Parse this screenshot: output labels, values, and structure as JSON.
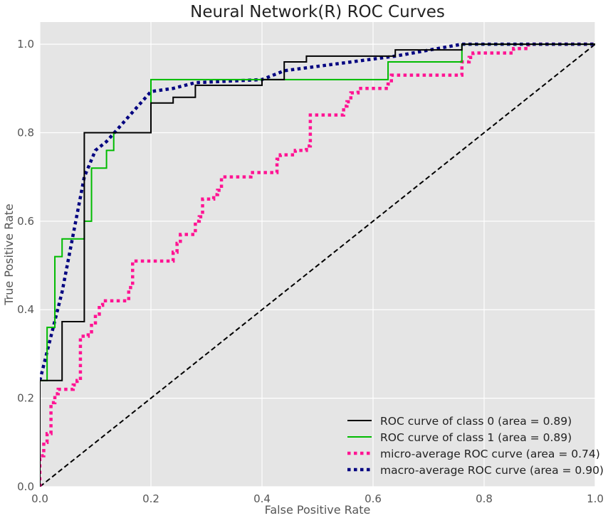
{
  "chart_data": {
    "type": "line",
    "title": "Neural Network(R) ROC Curves",
    "xlabel": "False Positive Rate",
    "ylabel": "True Positive Rate",
    "xlim": [
      0.0,
      1.0
    ],
    "ylim": [
      0.0,
      1.05
    ],
    "xticks": [
      "0.0",
      "0.2",
      "0.4",
      "0.6",
      "0.8",
      "1.0"
    ],
    "yticks": [
      "0.0",
      "0.2",
      "0.4",
      "0.6",
      "0.8",
      "1.0"
    ],
    "grid": true,
    "background": "#e5e5e5",
    "legend_position": "lower right",
    "series": [
      {
        "name": "ROC curve of class 0 (area = 0.89)",
        "color": "#000000",
        "style": "solid",
        "points": [
          [
            0,
            0
          ],
          [
            0,
            0.24
          ],
          [
            0.04,
            0.24
          ],
          [
            0.04,
            0.373
          ],
          [
            0.08,
            0.373
          ],
          [
            0.08,
            0.8
          ],
          [
            0.2,
            0.8
          ],
          [
            0.2,
            0.867
          ],
          [
            0.24,
            0.867
          ],
          [
            0.24,
            0.88
          ],
          [
            0.28,
            0.88
          ],
          [
            0.28,
            0.907
          ],
          [
            0.4,
            0.907
          ],
          [
            0.4,
            0.92
          ],
          [
            0.44,
            0.92
          ],
          [
            0.44,
            0.96
          ],
          [
            0.48,
            0.96
          ],
          [
            0.48,
            0.973
          ],
          [
            0.64,
            0.973
          ],
          [
            0.64,
            0.987
          ],
          [
            0.76,
            0.987
          ],
          [
            0.76,
            1.0
          ],
          [
            1.0,
            1.0
          ]
        ]
      },
      {
        "name": "ROC curve of class 1 (area = 0.89)",
        "color": "#00bb00",
        "style": "solid",
        "points": [
          [
            0,
            0
          ],
          [
            0,
            0.24
          ],
          [
            0.013,
            0.24
          ],
          [
            0.013,
            0.36
          ],
          [
            0.027,
            0.36
          ],
          [
            0.027,
            0.52
          ],
          [
            0.04,
            0.52
          ],
          [
            0.04,
            0.56
          ],
          [
            0.08,
            0.56
          ],
          [
            0.08,
            0.6
          ],
          [
            0.093,
            0.6
          ],
          [
            0.093,
            0.72
          ],
          [
            0.12,
            0.72
          ],
          [
            0.12,
            0.76
          ],
          [
            0.133,
            0.76
          ],
          [
            0.133,
            0.8
          ],
          [
            0.2,
            0.8
          ],
          [
            0.2,
            0.92
          ],
          [
            0.627,
            0.92
          ],
          [
            0.627,
            0.96
          ],
          [
            0.76,
            0.96
          ],
          [
            0.76,
            1.0
          ],
          [
            1.0,
            1.0
          ]
        ]
      },
      {
        "name": "micro-average ROC curve (area = 0.74)",
        "color": "#ff1493",
        "style": "dotted",
        "points": [
          [
            0,
            0
          ],
          [
            0,
            0.07
          ],
          [
            0.007,
            0.07
          ],
          [
            0.007,
            0.1
          ],
          [
            0.013,
            0.1
          ],
          [
            0.013,
            0.12
          ],
          [
            0.02,
            0.12
          ],
          [
            0.02,
            0.19
          ],
          [
            0.027,
            0.19
          ],
          [
            0.027,
            0.21
          ],
          [
            0.033,
            0.21
          ],
          [
            0.033,
            0.22
          ],
          [
            0.06,
            0.22
          ],
          [
            0.06,
            0.23
          ],
          [
            0.067,
            0.23
          ],
          [
            0.067,
            0.24
          ],
          [
            0.073,
            0.24
          ],
          [
            0.073,
            0.34
          ],
          [
            0.087,
            0.34
          ],
          [
            0.087,
            0.35
          ],
          [
            0.093,
            0.35
          ],
          [
            0.093,
            0.37
          ],
          [
            0.1,
            0.37
          ],
          [
            0.1,
            0.39
          ],
          [
            0.107,
            0.39
          ],
          [
            0.107,
            0.41
          ],
          [
            0.113,
            0.41
          ],
          [
            0.113,
            0.42
          ],
          [
            0.16,
            0.42
          ],
          [
            0.16,
            0.45
          ],
          [
            0.167,
            0.45
          ],
          [
            0.167,
            0.51
          ],
          [
            0.24,
            0.51
          ],
          [
            0.24,
            0.53
          ],
          [
            0.247,
            0.53
          ],
          [
            0.247,
            0.55
          ],
          [
            0.253,
            0.55
          ],
          [
            0.253,
            0.57
          ],
          [
            0.28,
            0.57
          ],
          [
            0.28,
            0.6
          ],
          [
            0.287,
            0.6
          ],
          [
            0.287,
            0.61
          ],
          [
            0.293,
            0.61
          ],
          [
            0.293,
            0.65
          ],
          [
            0.313,
            0.65
          ],
          [
            0.313,
            0.66
          ],
          [
            0.32,
            0.66
          ],
          [
            0.32,
            0.67
          ],
          [
            0.327,
            0.67
          ],
          [
            0.327,
            0.7
          ],
          [
            0.38,
            0.7
          ],
          [
            0.38,
            0.71
          ],
          [
            0.427,
            0.71
          ],
          [
            0.427,
            0.74
          ],
          [
            0.433,
            0.74
          ],
          [
            0.433,
            0.75
          ],
          [
            0.46,
            0.75
          ],
          [
            0.46,
            0.76
          ],
          [
            0.48,
            0.76
          ],
          [
            0.48,
            0.77
          ],
          [
            0.487,
            0.77
          ],
          [
            0.487,
            0.84
          ],
          [
            0.547,
            0.84
          ],
          [
            0.547,
            0.86
          ],
          [
            0.553,
            0.86
          ],
          [
            0.553,
            0.87
          ],
          [
            0.56,
            0.87
          ],
          [
            0.56,
            0.89
          ],
          [
            0.573,
            0.89
          ],
          [
            0.573,
            0.9
          ],
          [
            0.627,
            0.9
          ],
          [
            0.627,
            0.91
          ],
          [
            0.633,
            0.91
          ],
          [
            0.633,
            0.93
          ],
          [
            0.76,
            0.93
          ],
          [
            0.76,
            0.96
          ],
          [
            0.773,
            0.96
          ],
          [
            0.773,
            0.97
          ],
          [
            0.78,
            0.97
          ],
          [
            0.78,
            0.98
          ],
          [
            0.853,
            0.98
          ],
          [
            0.853,
            0.99
          ],
          [
            0.88,
            0.99
          ],
          [
            0.88,
            1.0
          ],
          [
            1.0,
            1.0
          ]
        ]
      },
      {
        "name": "macro-average ROC curve (area = 0.90)",
        "color": "#000080",
        "style": "dotted",
        "points": [
          [
            0,
            0.24
          ],
          [
            0.04,
            0.44
          ],
          [
            0.08,
            0.7
          ],
          [
            0.1,
            0.76
          ],
          [
            0.12,
            0.78
          ],
          [
            0.2,
            0.893
          ],
          [
            0.24,
            0.9
          ],
          [
            0.28,
            0.913
          ],
          [
            0.4,
            0.92
          ],
          [
            0.44,
            0.94
          ],
          [
            0.64,
            0.973
          ],
          [
            0.76,
            1.0
          ],
          [
            1.0,
            1.0
          ]
        ]
      },
      {
        "name": "",
        "color": "#000000",
        "style": "dashed",
        "points": [
          [
            0,
            0
          ],
          [
            1,
            1
          ]
        ]
      }
    ]
  }
}
